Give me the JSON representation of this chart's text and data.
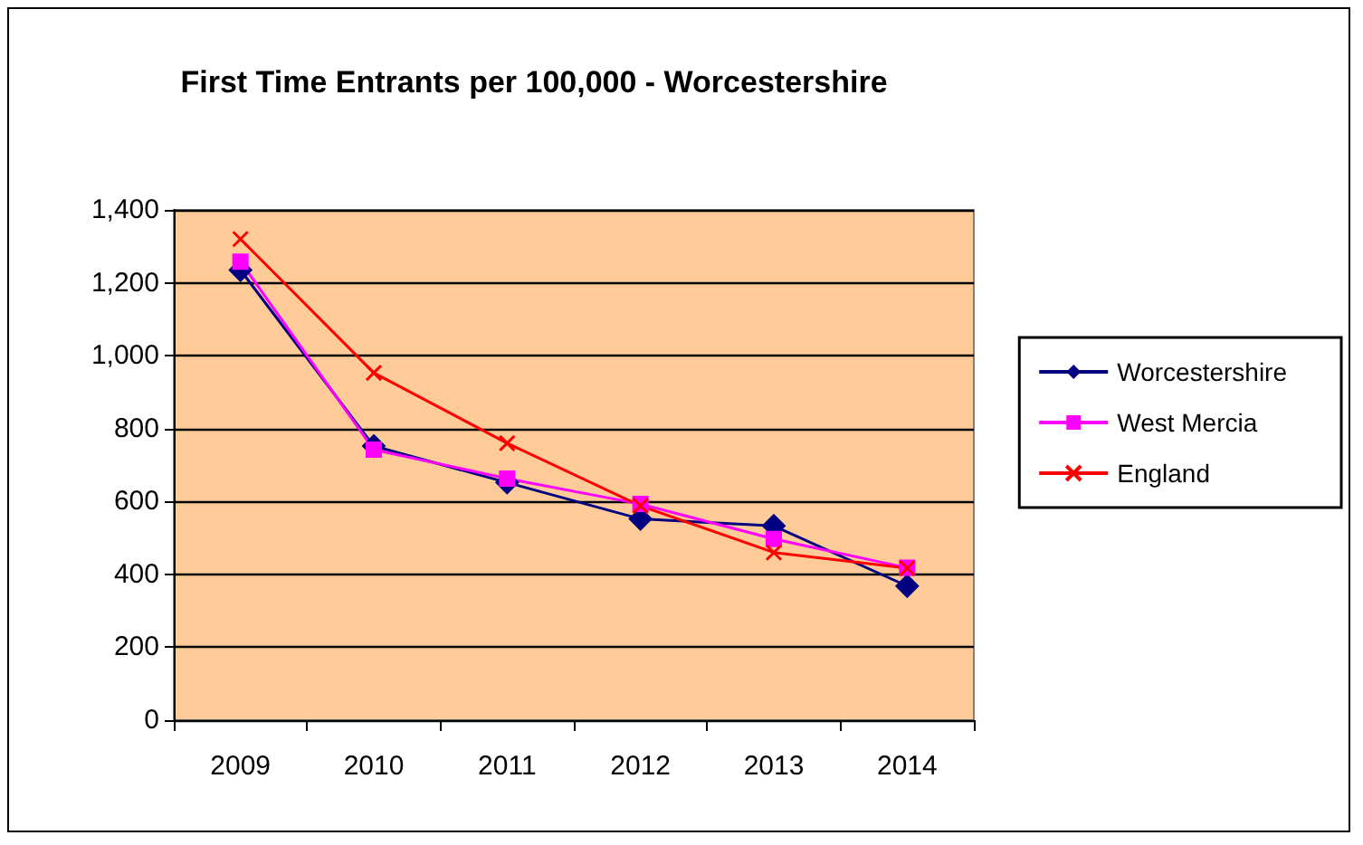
{
  "chart_data": {
    "type": "line",
    "title": "First Time Entrants per 100,000 - Worcestershire",
    "categories": [
      "2009",
      "2010",
      "2011",
      "2012",
      "2013",
      "2014"
    ],
    "series": [
      {
        "name": "Worcestershire",
        "color": "#000080",
        "marker": "diamond",
        "values": [
          1235,
          752,
          652,
          552,
          533,
          368
        ]
      },
      {
        "name": "West Mercia",
        "color": "#ff00ff",
        "marker": "square",
        "values": [
          1258,
          742,
          663,
          593,
          497,
          418
        ]
      },
      {
        "name": "England",
        "color": "#ff0000",
        "marker": "cross",
        "values": [
          1320,
          953,
          760,
          588,
          460,
          417
        ]
      }
    ],
    "ylim": [
      0,
      1400
    ],
    "yticks": [
      0,
      200,
      400,
      600,
      800,
      {
        "value": 1000,
        "label": "1,000"
      },
      {
        "value": 1200,
        "label": "1,200"
      },
      {
        "value": 1400,
        "label": "1,400"
      }
    ],
    "grid": "y",
    "legend": "right",
    "line_style": "solid"
  }
}
